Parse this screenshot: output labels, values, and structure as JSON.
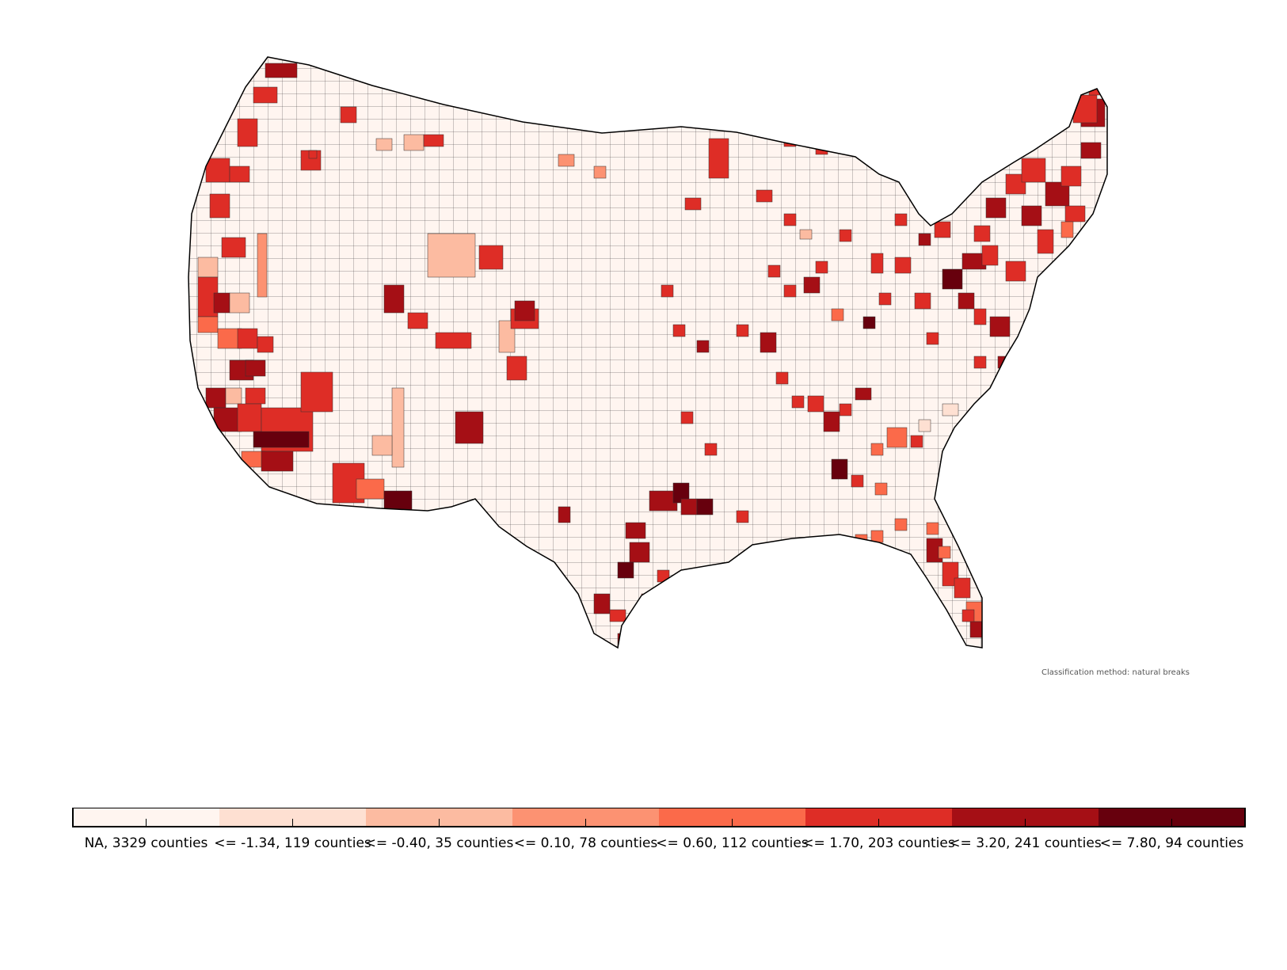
{
  "map": {
    "type": "choropleth",
    "region": "contiguous United States",
    "unit": "counties",
    "classification_note": "Classification method: natural breaks",
    "colors": {
      "background": "#ffffff",
      "county_border": "#333333",
      "state_border": "#000000",
      "na": "#fff5f0"
    },
    "classes": [
      {
        "label": "NA, 3329 counties",
        "upper_bound": null,
        "count": 3329,
        "color": "#fff5f0"
      },
      {
        "label": "<= -1.34, 119 counties",
        "upper_bound": -1.34,
        "count": 119,
        "color": "#fee0d2"
      },
      {
        "label": "<= -0.40, 35 counties",
        "upper_bound": -0.4,
        "count": 35,
        "color": "#fcbba1"
      },
      {
        "label": "<= 0.10, 78 counties",
        "upper_bound": 0.1,
        "count": 78,
        "color": "#fc9272"
      },
      {
        "label": "<= 0.60, 112 counties",
        "upper_bound": 0.6,
        "count": 112,
        "color": "#fb6a4a"
      },
      {
        "label": "<= 1.70, 203 counties",
        "upper_bound": 1.7,
        "count": 203,
        "color": "#de2d26"
      },
      {
        "label": "<= 3.20, 241 counties",
        "upper_bound": 3.2,
        "count": 241,
        "color": "#a50f15"
      },
      {
        "label": "<= 7.80, 94 counties",
        "upper_bound": 7.8,
        "count": 94,
        "color": "#67000d"
      }
    ]
  }
}
